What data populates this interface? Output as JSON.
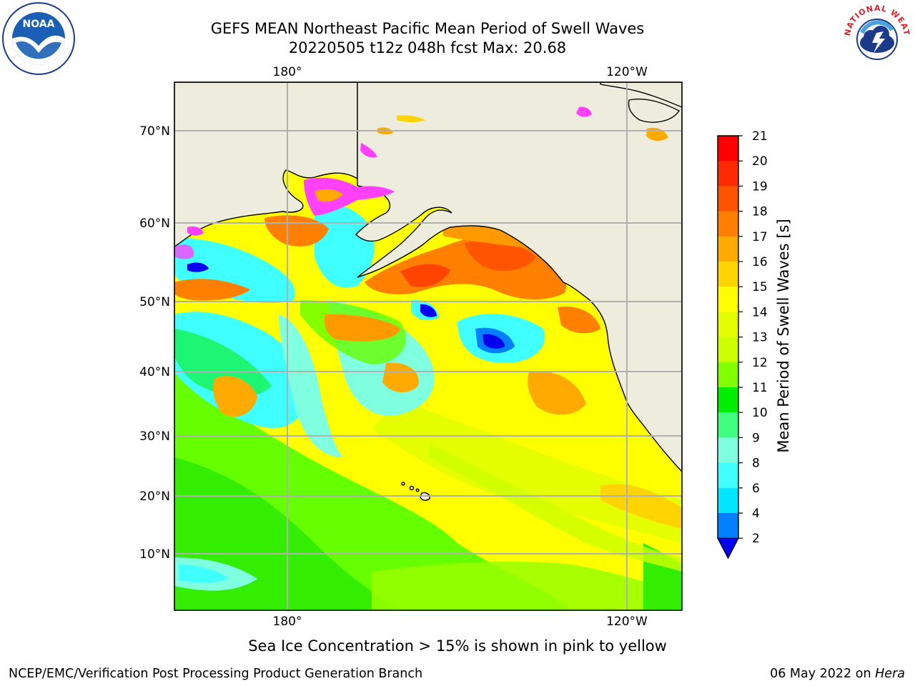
{
  "title": {
    "line1": "GEFS MEAN Northeast Pacific Mean Period of Swell Waves",
    "line2": "20220505 t12z 048h fcst   Max: 20.68"
  },
  "map": {
    "lon_top_labels": [
      "180°",
      "120°W"
    ],
    "lon_bottom_labels": [
      "180°",
      "120°W"
    ],
    "lat_labels": [
      "70°N",
      "60°N",
      "50°N",
      "40°N",
      "30°N",
      "20°N",
      "10°N"
    ],
    "land_color": "#eeecdc",
    "grid_color": "#b0b0b0"
  },
  "colorbar": {
    "label": "Mean Period of Swell Waves [s]",
    "ticks": [
      "21",
      "20",
      "19",
      "18",
      "17",
      "16",
      "15",
      "14",
      "13",
      "12",
      "11",
      "10",
      "9",
      "8",
      "6",
      "4",
      "2"
    ],
    "colors": [
      "#ff0000",
      "#ff2a00",
      "#ff5500",
      "#ff7f00",
      "#ffaa00",
      "#ffd400",
      "#ffff00",
      "#e6ff00",
      "#ccff00",
      "#80ff00",
      "#00ee00",
      "#40ff80",
      "#80ffe0",
      "#40ffff",
      "#00e6ff",
      "#0080ff",
      "#0000ff"
    ],
    "extend_color": "#0000ee"
  },
  "note": "Sea Ice Concentration > 15% is shown in pink to yellow",
  "footer": {
    "left": "NCEP/EMC/Verification Post Processing Product Generation Branch",
    "date": "06 May 2022 on",
    "host": "Hera"
  },
  "logos": {
    "noaa_text": "NOAA",
    "nws_text": "NATIONAL WEATHER SERVICE"
  }
}
